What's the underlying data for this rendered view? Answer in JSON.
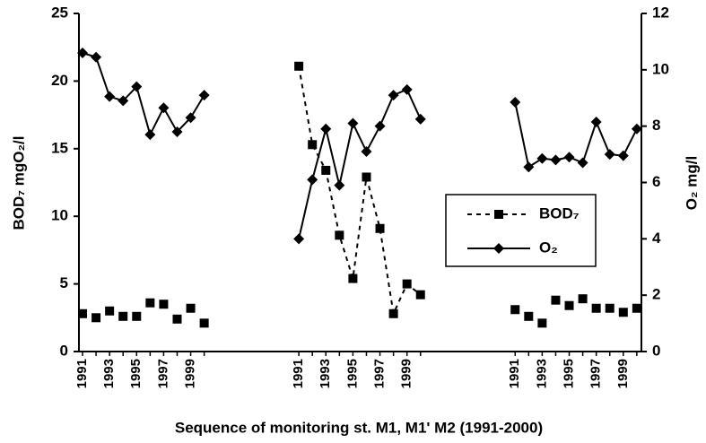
{
  "chart_data": {
    "type": "line",
    "x_label": "Sequence of monitoring st. M1, M1' M2 (1991-2000)",
    "y_label": "BOD₇ mgO₂/l",
    "y2_label": "O₂ mg/l",
    "ylim": [
      0,
      25
    ],
    "yticks": [
      0,
      5,
      10,
      15,
      20,
      25
    ],
    "y2lim": [
      0,
      12
    ],
    "y2ticks": [
      0,
      2,
      4,
      6,
      8,
      10,
      12
    ],
    "legend": "right",
    "series": [
      {
        "name": "BOD₇",
        "color": "#000000",
        "marker": "square",
        "dash": "dashed",
        "axis": "y"
      },
      {
        "name": "O₂",
        "color": "#000000",
        "marker": "diamond",
        "dash": "solid",
        "axis": "y2"
      }
    ],
    "groups": [
      {
        "categories": [
          "1991",
          null,
          "1993",
          null,
          "1995",
          null,
          "1997",
          null,
          "1999",
          null
        ],
        "connected": [
          false,
          true
        ],
        "series_values": [
          [
            2.8,
            2.5,
            3.0,
            2.6,
            2.6,
            3.6,
            3.5,
            2.4,
            3.2,
            2.1
          ],
          [
            10.6,
            10.45,
            9.05,
            8.9,
            9.4,
            7.7,
            8.65,
            7.8,
            8.3,
            9.1
          ]
        ]
      },
      {
        "categories": [
          "1991",
          null,
          "1993",
          null,
          "1995",
          null,
          "1997",
          null,
          "1999",
          null
        ],
        "connected": [
          true,
          true
        ],
        "series_values": [
          [
            21.1,
            15.3,
            13.4,
            8.6,
            5.4,
            12.9,
            9.1,
            2.8,
            5.0,
            4.2
          ],
          [
            4.0,
            6.1,
            7.9,
            5.9,
            8.1,
            7.1,
            8.0,
            9.1,
            9.3,
            8.25
          ]
        ]
      },
      {
        "categories": [
          "1991",
          null,
          "1993",
          null,
          "1995",
          null,
          "1997",
          null,
          "1999",
          null
        ],
        "connected": [
          false,
          true
        ],
        "series_values": [
          [
            3.1,
            2.6,
            2.1,
            3.8,
            3.4,
            3.9,
            3.2,
            3.2,
            2.9,
            3.2
          ],
          [
            8.85,
            6.55,
            6.85,
            6.8,
            6.9,
            6.7,
            8.15,
            7.0,
            6.95,
            7.9
          ]
        ]
      }
    ]
  }
}
